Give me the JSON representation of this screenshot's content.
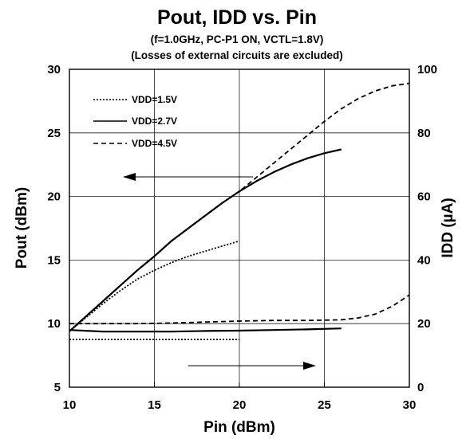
{
  "chart_data": {
    "type": "line",
    "title": "Pout, IDD vs. Pin",
    "subtitle_1": "(f=1.0GHz, PC-P1 ON, VCTL=1.8V)",
    "subtitle_2": "(Losses of external circuits are excluded)",
    "xlabel": "Pin (dBm)",
    "ylabel_left": "Pout (dBm)",
    "ylabel_right": "IDD (µA)",
    "xlim": [
      10,
      30
    ],
    "ylim_left": [
      5,
      30
    ],
    "ylim_right": [
      0,
      100
    ],
    "x_ticks": [
      "10",
      "15",
      "20",
      "25",
      "30"
    ],
    "y_left_ticks": [
      "5",
      "10",
      "15",
      "20",
      "25",
      "30"
    ],
    "y_right_ticks": [
      "0",
      "20",
      "40",
      "60",
      "80",
      "100"
    ],
    "grid": true,
    "legend": [
      "VDD=1.5V",
      "VDD=2.7V",
      "VDD=4.5V"
    ],
    "series": [
      {
        "name": "VDD=1.5V",
        "axis": "left",
        "style": "dotted",
        "x": [
          10,
          11,
          12,
          13,
          14,
          15,
          16,
          17,
          18,
          19,
          20
        ],
        "y": [
          9.4,
          10.5,
          11.6,
          12.6,
          13.5,
          14.2,
          14.8,
          15.3,
          15.7,
          16.1,
          16.5
        ]
      },
      {
        "name": "VDD=2.7V",
        "axis": "left",
        "style": "solid",
        "x": [
          10,
          11,
          12,
          13,
          14,
          15,
          16,
          17,
          18,
          19,
          20,
          21,
          22,
          23,
          24,
          25,
          26
        ],
        "y": [
          9.4,
          10.6,
          11.8,
          13.0,
          14.2,
          15.3,
          16.5,
          17.5,
          18.5,
          19.5,
          20.4,
          21.2,
          21.9,
          22.5,
          23.0,
          23.4,
          23.7
        ]
      },
      {
        "name": "VDD=4.5V",
        "axis": "left",
        "style": "dashed",
        "x": [
          10,
          11,
          12,
          13,
          14,
          15,
          16,
          17,
          18,
          19,
          20,
          21,
          22,
          23,
          24,
          25,
          26,
          27,
          28,
          29,
          30
        ],
        "y": [
          9.4,
          10.6,
          11.8,
          13.0,
          14.2,
          15.3,
          16.5,
          17.5,
          18.5,
          19.5,
          20.4,
          21.5,
          22.6,
          23.7,
          24.8,
          25.9,
          26.9,
          27.7,
          28.3,
          28.7,
          28.9
        ]
      },
      {
        "name": "VDD=1.5V",
        "axis": "right",
        "style": "dotted",
        "x": [
          10,
          12,
          14,
          16,
          18,
          20
        ],
        "y": [
          15.0,
          15.0,
          15.0,
          15.0,
          15.0,
          15.0
        ]
      },
      {
        "name": "VDD=2.7V",
        "axis": "right",
        "style": "solid",
        "x": [
          10,
          12,
          14,
          16,
          18,
          20,
          22,
          24,
          26
        ],
        "y": [
          18.0,
          17.5,
          17.5,
          17.5,
          17.7,
          17.8,
          18.0,
          18.2,
          18.5
        ]
      },
      {
        "name": "VDD=4.5V",
        "axis": "right",
        "style": "dashed",
        "x": [
          10,
          12,
          14,
          16,
          18,
          20,
          22,
          24,
          26,
          27,
          28,
          29,
          30
        ],
        "y": [
          20.0,
          20.0,
          20.0,
          20.2,
          20.5,
          20.8,
          21.0,
          21.0,
          21.2,
          21.8,
          23.0,
          25.5,
          29.0
        ]
      }
    ],
    "annotations": [
      {
        "type": "arrow",
        "direction": "left",
        "meaning": "Pout curves use left axis"
      },
      {
        "type": "arrow",
        "direction": "right",
        "meaning": "IDD curves use right axis"
      }
    ]
  }
}
